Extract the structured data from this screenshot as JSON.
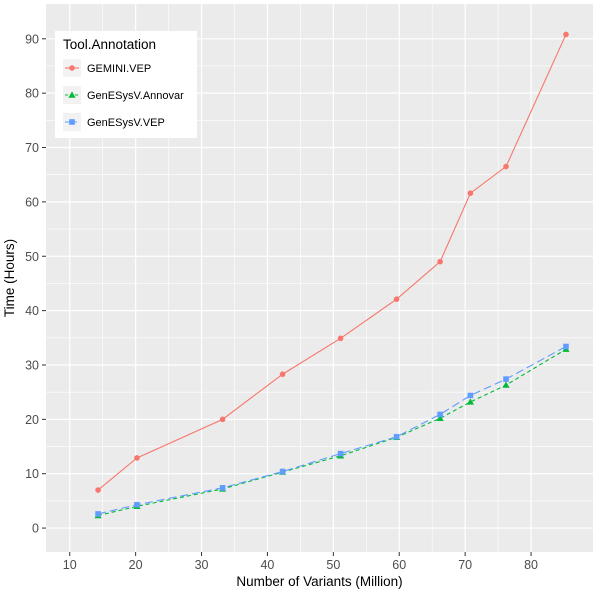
{
  "chart_data": {
    "type": "line",
    "title": "",
    "xlabel": "Number of Variants (Million)",
    "ylabel": "Time (Hours)",
    "xlim": [
      6.4,
      89.4
    ],
    "ylim": [
      -4.4,
      96.4
    ],
    "x_ticks": [
      10,
      20,
      30,
      40,
      50,
      60,
      70,
      80
    ],
    "y_ticks": [
      0,
      10,
      20,
      30,
      40,
      50,
      60,
      70,
      80,
      90
    ],
    "grid": true,
    "background": "#EBEBEB",
    "legend": {
      "title": "Tool.Annotation",
      "placement": "top-left"
    },
    "series": [
      {
        "name": "GEMINI.VEP",
        "color": "#F8766D",
        "marker": "circle",
        "dash": "solid",
        "x": [
          14.3,
          20.2,
          33.2,
          42.3,
          51.1,
          59.6,
          66.2,
          70.8,
          76.2,
          85.3
        ],
        "y": [
          7.0,
          12.9,
          20.0,
          28.3,
          34.9,
          42.1,
          49.0,
          61.6,
          66.5,
          90.8
        ]
      },
      {
        "name": "GenESysV.Annovar",
        "color": "#00BA38",
        "marker": "triangle",
        "dash": "dashed",
        "x": [
          14.3,
          20.2,
          33.2,
          42.3,
          51.1,
          59.6,
          66.2,
          70.8,
          76.2,
          85.3
        ],
        "y": [
          2.3,
          4.0,
          7.2,
          10.3,
          13.3,
          16.7,
          20.2,
          23.2,
          26.3,
          32.9
        ]
      },
      {
        "name": "GenESysV.VEP",
        "color": "#619CFF",
        "marker": "square",
        "dash": "longdash",
        "x": [
          14.3,
          20.2,
          33.2,
          42.3,
          51.1,
          59.6,
          66.2,
          70.8,
          76.2,
          85.3
        ],
        "y": [
          2.6,
          4.3,
          7.4,
          10.4,
          13.7,
          16.8,
          20.9,
          24.4,
          27.4,
          33.4
        ]
      }
    ]
  }
}
